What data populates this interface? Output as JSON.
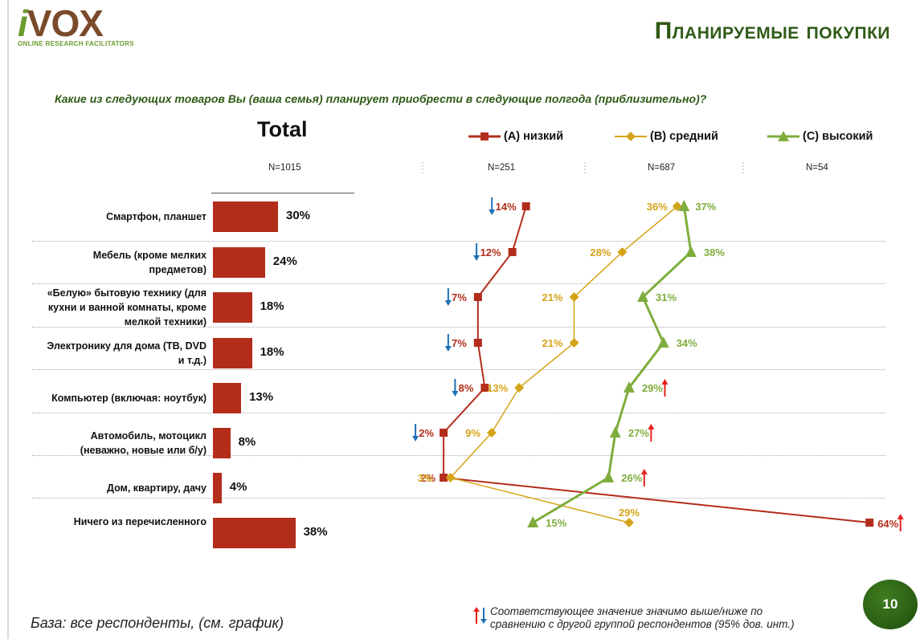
{
  "header": {
    "logo_text": "VOX",
    "logo_i": "i",
    "logo_sub": "ONLINE RESEARCH FACILITATORS",
    "title": "Планируемые покупки"
  },
  "question": "Какие из следующих товаров Вы (ваша семья) планирует приобрести в следующие полгода (приблизительно)?",
  "total": {
    "heading": "Total",
    "n": "N=1015"
  },
  "groups": [
    {
      "name": "(А) низкий",
      "n": "N=251",
      "color": "#b32d1b",
      "marker": "square"
    },
    {
      "name": "(В) средний",
      "n": "N=687",
      "color": "#d4a418",
      "marker": "diamond"
    },
    {
      "name": "(С) высокий",
      "n": "N=54",
      "color": "#7fad3d",
      "marker": "triangle"
    }
  ],
  "chart_data": [
    {
      "type": "bar",
      "title": "Total",
      "categories": [
        "Смартфон, планшет",
        "Мебель (кроме мелких предметов)",
        "«Белую» бытовую технику (для кухни и ванной комнаты, кроме мелкой техники)",
        "Электронику для дома (ТВ, DVD и т.д.)",
        "Компьютер (включая: ноутбук)",
        "Автомобиль, мотоцикл (неважно, новые или б/у)",
        "Дом, квартиру, дачу",
        "Ничего из перечисленного"
      ],
      "category_lines": [
        [
          "Смартфон, планшет"
        ],
        [
          "Мебель (кроме мелких",
          "предметов)"
        ],
        [
          "«Белую» бытовую технику (для",
          "кухни и ванной комнаты, кроме",
          "мелкой техники)"
        ],
        [
          "Электронику для дома (ТВ, DVD",
          "и т.д.)"
        ],
        [
          "Компьютер (включая: ноутбук)"
        ],
        [
          "Автомобиль, мотоцикл",
          "(неважно, новые или б/у)"
        ],
        [
          "Дом, квартиру, дачу"
        ],
        [
          "Ничего из перечисленного"
        ]
      ],
      "values": [
        30,
        24,
        18,
        18,
        13,
        8,
        4,
        38
      ],
      "labels": [
        "30%",
        "24%",
        "18%",
        "18%",
        "13%",
        "8%",
        "4%",
        "38%"
      ],
      "unit": "%"
    },
    {
      "type": "line",
      "series": [
        {
          "name": "(А) низкий",
          "values": [
            14,
            12,
            7,
            7,
            8,
            2,
            2,
            64
          ],
          "labels": [
            "14%",
            "12%",
            "7%",
            "7%",
            "8%",
            "2%",
            "2%",
            "64%"
          ],
          "sig": [
            "down",
            "down",
            "down",
            "down",
            "down",
            "down",
            "",
            "up"
          ]
        },
        {
          "name": "(В) средний",
          "values": [
            36,
            28,
            21,
            21,
            13,
            9,
            3,
            29
          ],
          "labels": [
            "36%",
            "28%",
            "21%",
            "21%",
            "13%",
            "9%",
            "3%",
            "29%"
          ],
          "sig": [
            "",
            "",
            "",
            "",
            "",
            "",
            "",
            ""
          ]
        },
        {
          "name": "(С) высокий",
          "values": [
            37,
            38,
            31,
            34,
            29,
            27,
            26,
            15
          ],
          "labels": [
            "37%",
            "38%",
            "31%",
            "34%",
            "29%",
            "27%",
            "26%",
            "15%"
          ],
          "sig": [
            "",
            "",
            "",
            "",
            "up",
            "up",
            "up",
            ""
          ]
        }
      ]
    }
  ],
  "footer": {
    "base": "База: все респонденты, (см. график)",
    "sig_line1": "Соответствующее значение значимо выше/ниже по",
    "sig_line2": "сравнению с другой группой респондентов (95% дов. инт.)",
    "page": "10"
  },
  "colors": {
    "bar": "#b32d1b",
    "title": "#2f5a16",
    "up_arrow": "#e8201a",
    "down_arrow": "#1f6fb5"
  }
}
